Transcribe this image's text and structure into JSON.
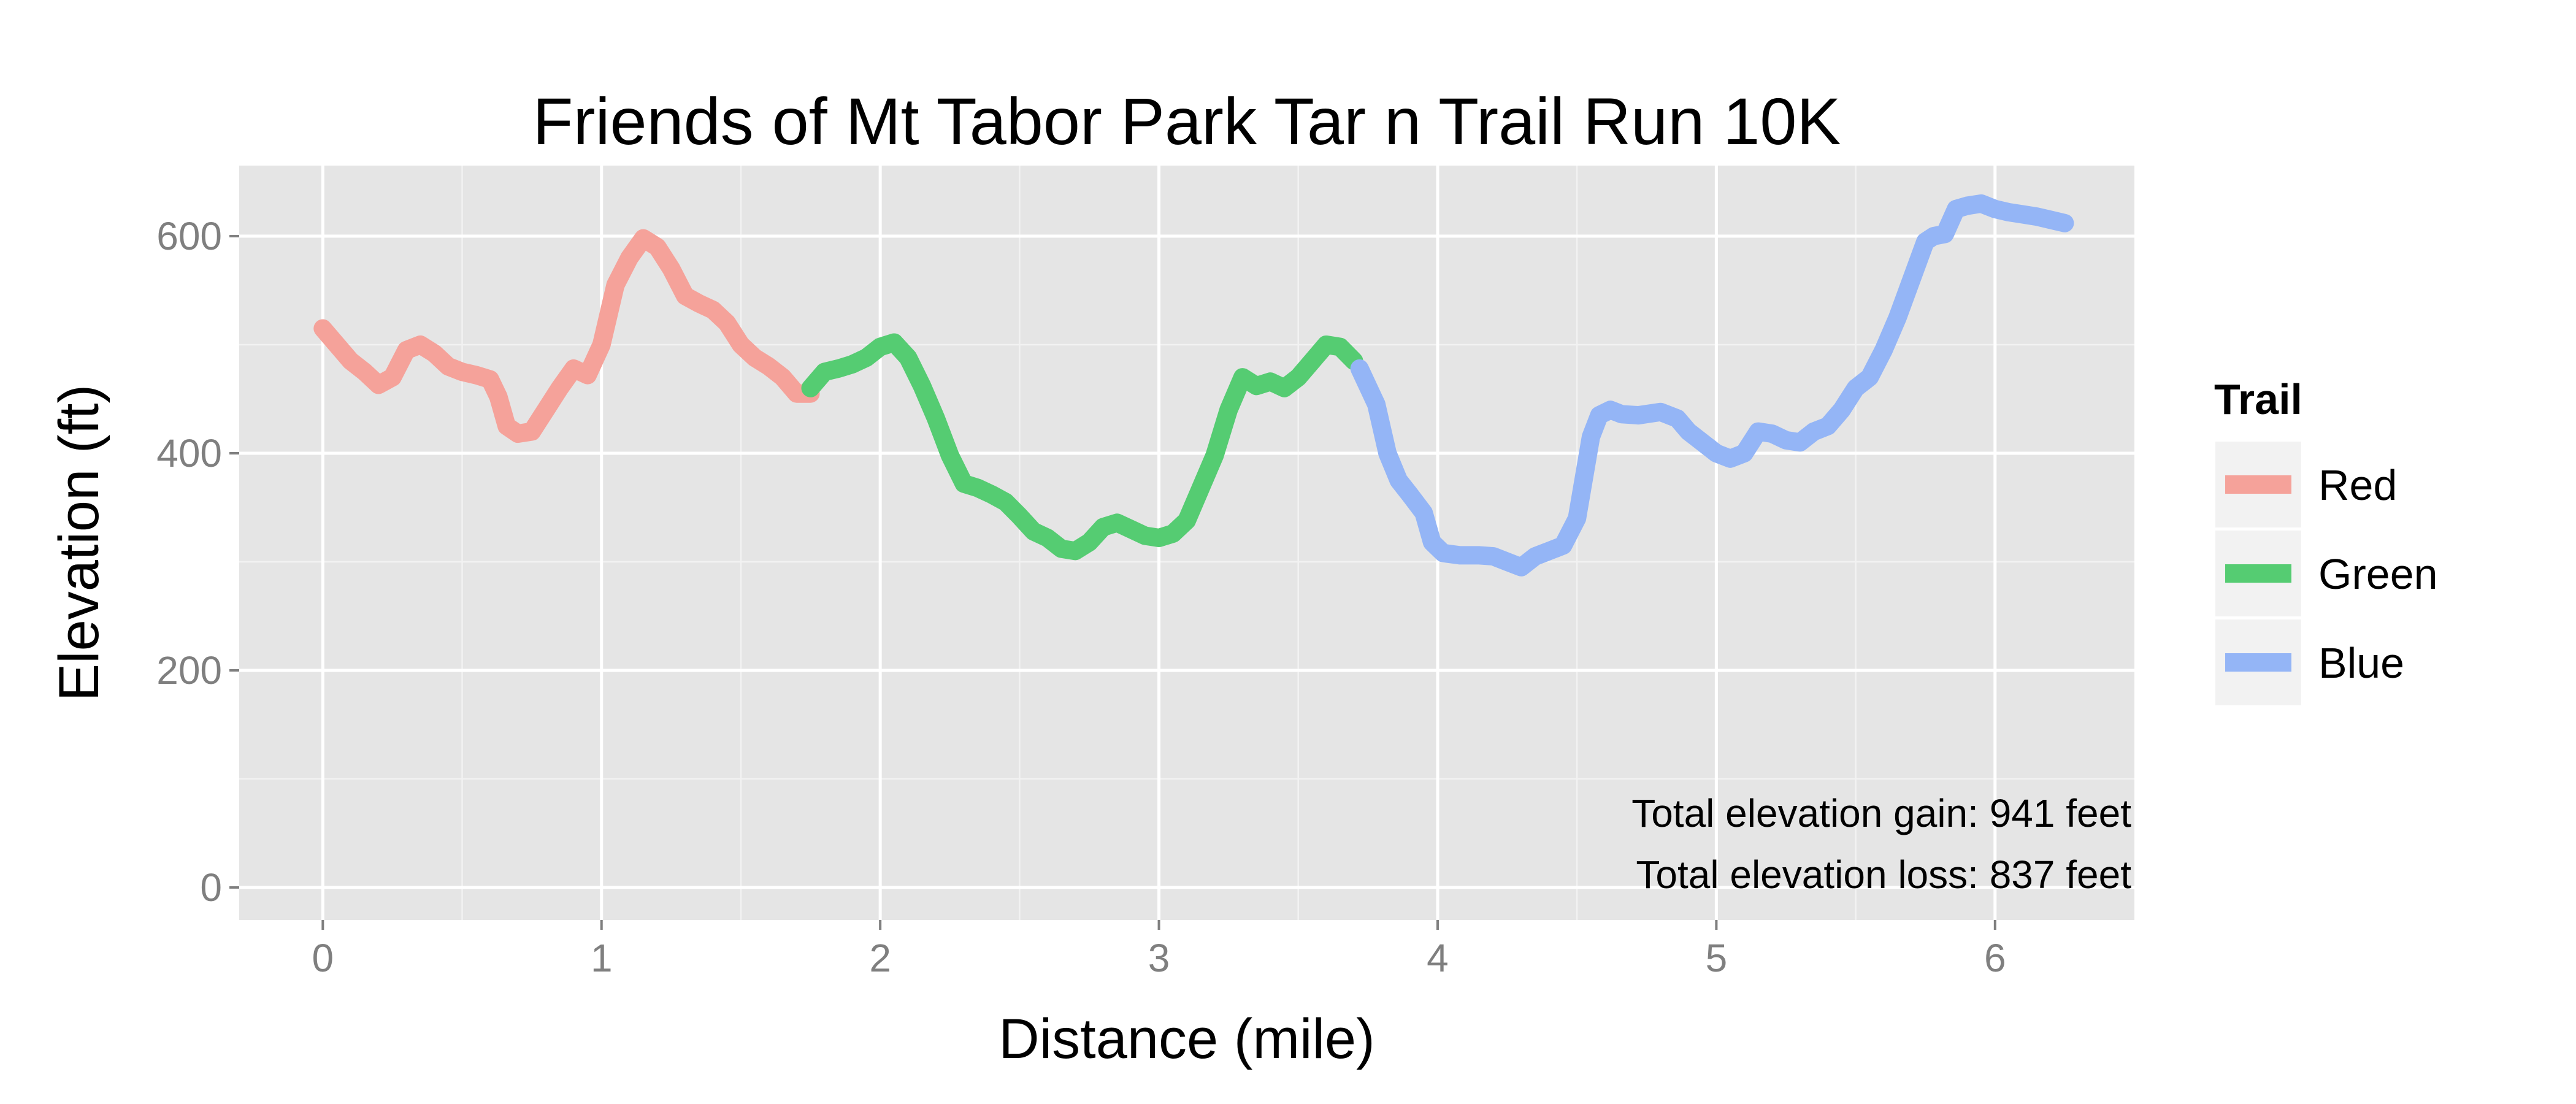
{
  "chart_data": {
    "type": "line",
    "title": "Friends of Mt Tabor Park Tar n Trail Run 10K",
    "xlabel": "Distance (mile)",
    "ylabel": "Elevation (ft)",
    "xlim": [
      -0.3,
      6.5
    ],
    "ylim": [
      -30,
      665
    ],
    "x_ticks": [
      0,
      1,
      2,
      3,
      4,
      5,
      6
    ],
    "y_ticks": [
      0,
      200,
      400,
      600
    ],
    "grid": true,
    "legend": {
      "title": "Trail",
      "position": "right"
    },
    "annotations": [
      "Total elevation gain: 941 feet",
      "Total elevation loss: 837 feet"
    ],
    "series": [
      {
        "name": "Red",
        "color": "#F5A29A",
        "x": [
          0,
          0.05,
          0.1,
          0.15,
          0.2,
          0.25,
          0.3,
          0.35,
          0.4,
          0.45,
          0.5,
          0.55,
          0.6,
          0.63,
          0.66,
          0.7,
          0.75,
          0.8,
          0.85,
          0.9,
          0.95,
          1.0,
          1.05,
          1.1,
          1.15,
          1.2,
          1.25,
          1.3,
          1.35,
          1.4,
          1.45,
          1.5,
          1.55,
          1.6,
          1.65,
          1.7,
          1.75
        ],
        "y": [
          515,
          500,
          485,
          475,
          463,
          470,
          495,
          500,
          492,
          480,
          475,
          472,
          468,
          452,
          425,
          418,
          420,
          440,
          460,
          478,
          472,
          500,
          555,
          580,
          598,
          590,
          570,
          545,
          538,
          532,
          520,
          500,
          488,
          480,
          470,
          455,
          455
        ]
      },
      {
        "name": "Green",
        "color": "#55CC72",
        "x": [
          1.75,
          1.8,
          1.85,
          1.9,
          1.95,
          2.0,
          2.05,
          2.1,
          2.15,
          2.2,
          2.25,
          2.3,
          2.35,
          2.4,
          2.45,
          2.5,
          2.55,
          2.6,
          2.65,
          2.7,
          2.75,
          2.8,
          2.85,
          2.9,
          2.95,
          3.0,
          3.05,
          3.1,
          3.15,
          3.2,
          3.25,
          3.3,
          3.35,
          3.4,
          3.45,
          3.5,
          3.55,
          3.6,
          3.65,
          3.7
        ],
        "y": [
          460,
          475,
          478,
          482,
          488,
          498,
          502,
          488,
          462,
          432,
          398,
          372,
          368,
          362,
          355,
          342,
          328,
          322,
          312,
          310,
          318,
          332,
          336,
          330,
          324,
          322,
          326,
          338,
          368,
          398,
          440,
          470,
          462,
          466,
          460,
          470,
          485,
          500,
          498,
          485
        ]
      },
      {
        "name": "Blue",
        "color": "#94B5F6",
        "x": [
          3.72,
          3.78,
          3.82,
          3.86,
          3.9,
          3.95,
          3.98,
          4.02,
          4.08,
          4.15,
          4.2,
          4.25,
          4.3,
          4.35,
          4.4,
          4.45,
          4.5,
          4.55,
          4.58,
          4.62,
          4.66,
          4.72,
          4.8,
          4.86,
          4.9,
          4.95,
          5.0,
          5.05,
          5.1,
          5.15,
          5.2,
          5.25,
          5.3,
          5.35,
          5.4,
          5.45,
          5.5,
          5.55,
          5.6,
          5.65,
          5.7,
          5.75,
          5.78,
          5.82,
          5.86,
          5.9,
          5.95,
          6.0,
          6.05,
          6.1,
          6.15,
          6.2,
          6.25
        ],
        "y": [
          478,
          445,
          400,
          375,
          362,
          345,
          318,
          308,
          306,
          306,
          305,
          300,
          295,
          305,
          310,
          315,
          340,
          415,
          435,
          440,
          436,
          435,
          438,
          432,
          420,
          410,
          400,
          395,
          400,
          420,
          418,
          412,
          410,
          420,
          425,
          440,
          460,
          470,
          495,
          525,
          560,
          595,
          600,
          602,
          625,
          628,
          630,
          625,
          622,
          620,
          618,
          615,
          612
        ]
      }
    ]
  }
}
